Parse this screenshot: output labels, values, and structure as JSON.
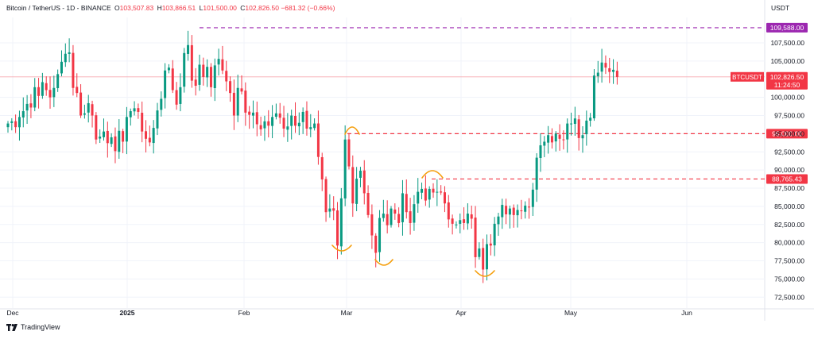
{
  "header": {
    "symbol": "Bitcoin / TetherUS - 1D - BINANCE",
    "open_label": "O",
    "open": "103,507.83",
    "high_label": "H",
    "high": "103,866.51",
    "low_label": "L",
    "low": "101,500.00",
    "close_label": "C",
    "close": "102,826.50",
    "change": "−681.32 (−0.66%)"
  },
  "currency": "USDT",
  "brand": "TradingView",
  "colors": {
    "up": "#089981",
    "down": "#f23645",
    "purple": "#9c27b0",
    "marker": "#f59e0b",
    "grid": "#f0f3fa"
  },
  "chart_data": {
    "type": "candlestick",
    "symbol": "BTCUSDT",
    "interval": "1D",
    "ylim": [
      71000,
      111000
    ],
    "y_ticks": [
      "72,500.00",
      "75,000.00",
      "77,500.00",
      "80,000.00",
      "82,500.00",
      "85,000.00",
      "87,500.00",
      "90,000.00",
      "92,500.00",
      "95,000.00",
      "97,500.00",
      "100,000.00",
      "105,000.00",
      "107,500.00"
    ],
    "x_ticks": [
      "Dec",
      "2025",
      "Feb",
      "Mar",
      "Apr",
      "May",
      "Jun"
    ],
    "levels": [
      {
        "label": "109,588.00",
        "value": 109588,
        "color": "#9c27b0"
      },
      {
        "label": "95,000.00",
        "value": 95000,
        "color": "#f23645"
      },
      {
        "label": "88,765.43",
        "value": 88765.43,
        "color": "#f23645"
      }
    ],
    "last_price": {
      "symbol": "BTCUSDT",
      "price": "102,826.50",
      "value": 102826.5,
      "countdown": "11:24:50"
    },
    "closes": [
      96400,
      96700,
      95900,
      97300,
      98100,
      99100,
      98600,
      101400,
      100200,
      102100,
      101000,
      100000,
      101300,
      103200,
      104900,
      106000,
      106200,
      101300,
      100600,
      97500,
      97800,
      99200,
      97500,
      94200,
      94600,
      95300,
      93700,
      94500,
      92600,
      95400,
      93900,
      97300,
      98100,
      98500,
      98000,
      95300,
      94300,
      93800,
      95800,
      98200,
      99800,
      103700,
      104100,
      101000,
      99000,
      101400,
      106100,
      107200,
      102300,
      101600,
      104500,
      102800,
      104200,
      101400,
      104400,
      105300,
      103700,
      102200,
      100600,
      97500,
      101300,
      100800,
      97900,
      97600,
      97900,
      96300,
      95600,
      96700,
      96100,
      97300,
      97800,
      97200,
      95700,
      96000,
      97500,
      96100,
      96500,
      98000,
      95700,
      95900,
      96400,
      91800,
      88700,
      84200,
      84700,
      84400,
      79600,
      86100,
      94200,
      90500,
      85400,
      88800,
      89900,
      86800,
      83800,
      81000,
      78600,
      83400,
      84000,
      82400,
      84700,
      84000,
      82700,
      86800,
      84200,
      82700,
      85300,
      87000,
      87400,
      85800,
      87400,
      86900,
      87000,
      86900,
      85400,
      83200,
      82600,
      82500,
      83100,
      82700,
      84000,
      83300,
      78000,
      79200,
      76300,
      79800,
      79600,
      82600,
      83600,
      85200,
      83900,
      84700,
      83800,
      84500,
      84400,
      85100,
      84900,
      87300,
      91700,
      93400,
      93900,
      94800,
      93800,
      95000,
      94300,
      94200,
      96400,
      96400,
      97100,
      94400,
      94800,
      96800,
      97200,
      103000,
      103400,
      104800,
      104100,
      103500,
      103800,
      102800
    ]
  }
}
